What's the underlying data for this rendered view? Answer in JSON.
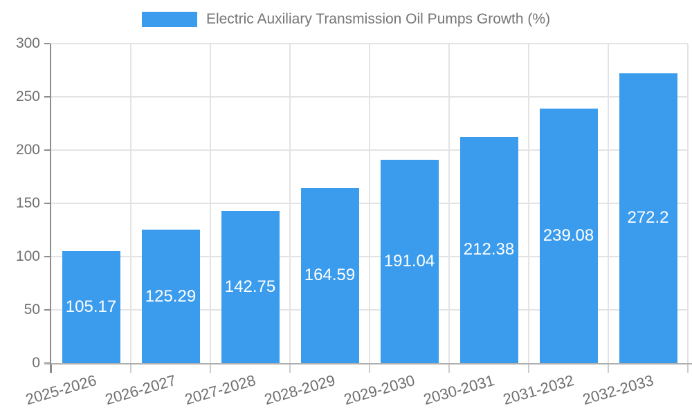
{
  "chart_data": {
    "type": "bar",
    "title": "Electric Auxiliary Transmission Oil Pumps Growth (%)",
    "legend": {
      "position": "top-center",
      "entries": [
        {
          "label": "Electric Auxiliary Transmission Oil Pumps Growth (%)",
          "color": "#3b9cee"
        }
      ]
    },
    "categories": [
      "2025-2026",
      "2026-2027",
      "2027-2028",
      "2028-2029",
      "2029-2030",
      "2030-2031",
      "2031-2032",
      "2032-2033"
    ],
    "values": [
      105.17,
      125.29,
      142.75,
      164.59,
      191.04,
      212.38,
      239.08,
      272.2
    ],
    "value_labels": [
      "105.17",
      "125.29",
      "142.75",
      "164.59",
      "191.04",
      "212.38",
      "239.08",
      "272.2"
    ],
    "xlabel": "",
    "ylabel": "",
    "ylim": [
      0,
      300
    ],
    "ytick_step": 50,
    "ytick_labels": [
      "0",
      "50",
      "100",
      "150",
      "200",
      "250",
      "300"
    ],
    "grid": true,
    "colors": {
      "bar": "#3b9cee",
      "value_label": "#ffffff",
      "grid_line": "#e3e3e3",
      "y_axis": "#8c8c8c",
      "x_axis": "#b0b0b0",
      "x_tick": "#cccccc",
      "tick_label": "#6f6f6f",
      "title": "#757575",
      "background": "#ffffff"
    }
  }
}
